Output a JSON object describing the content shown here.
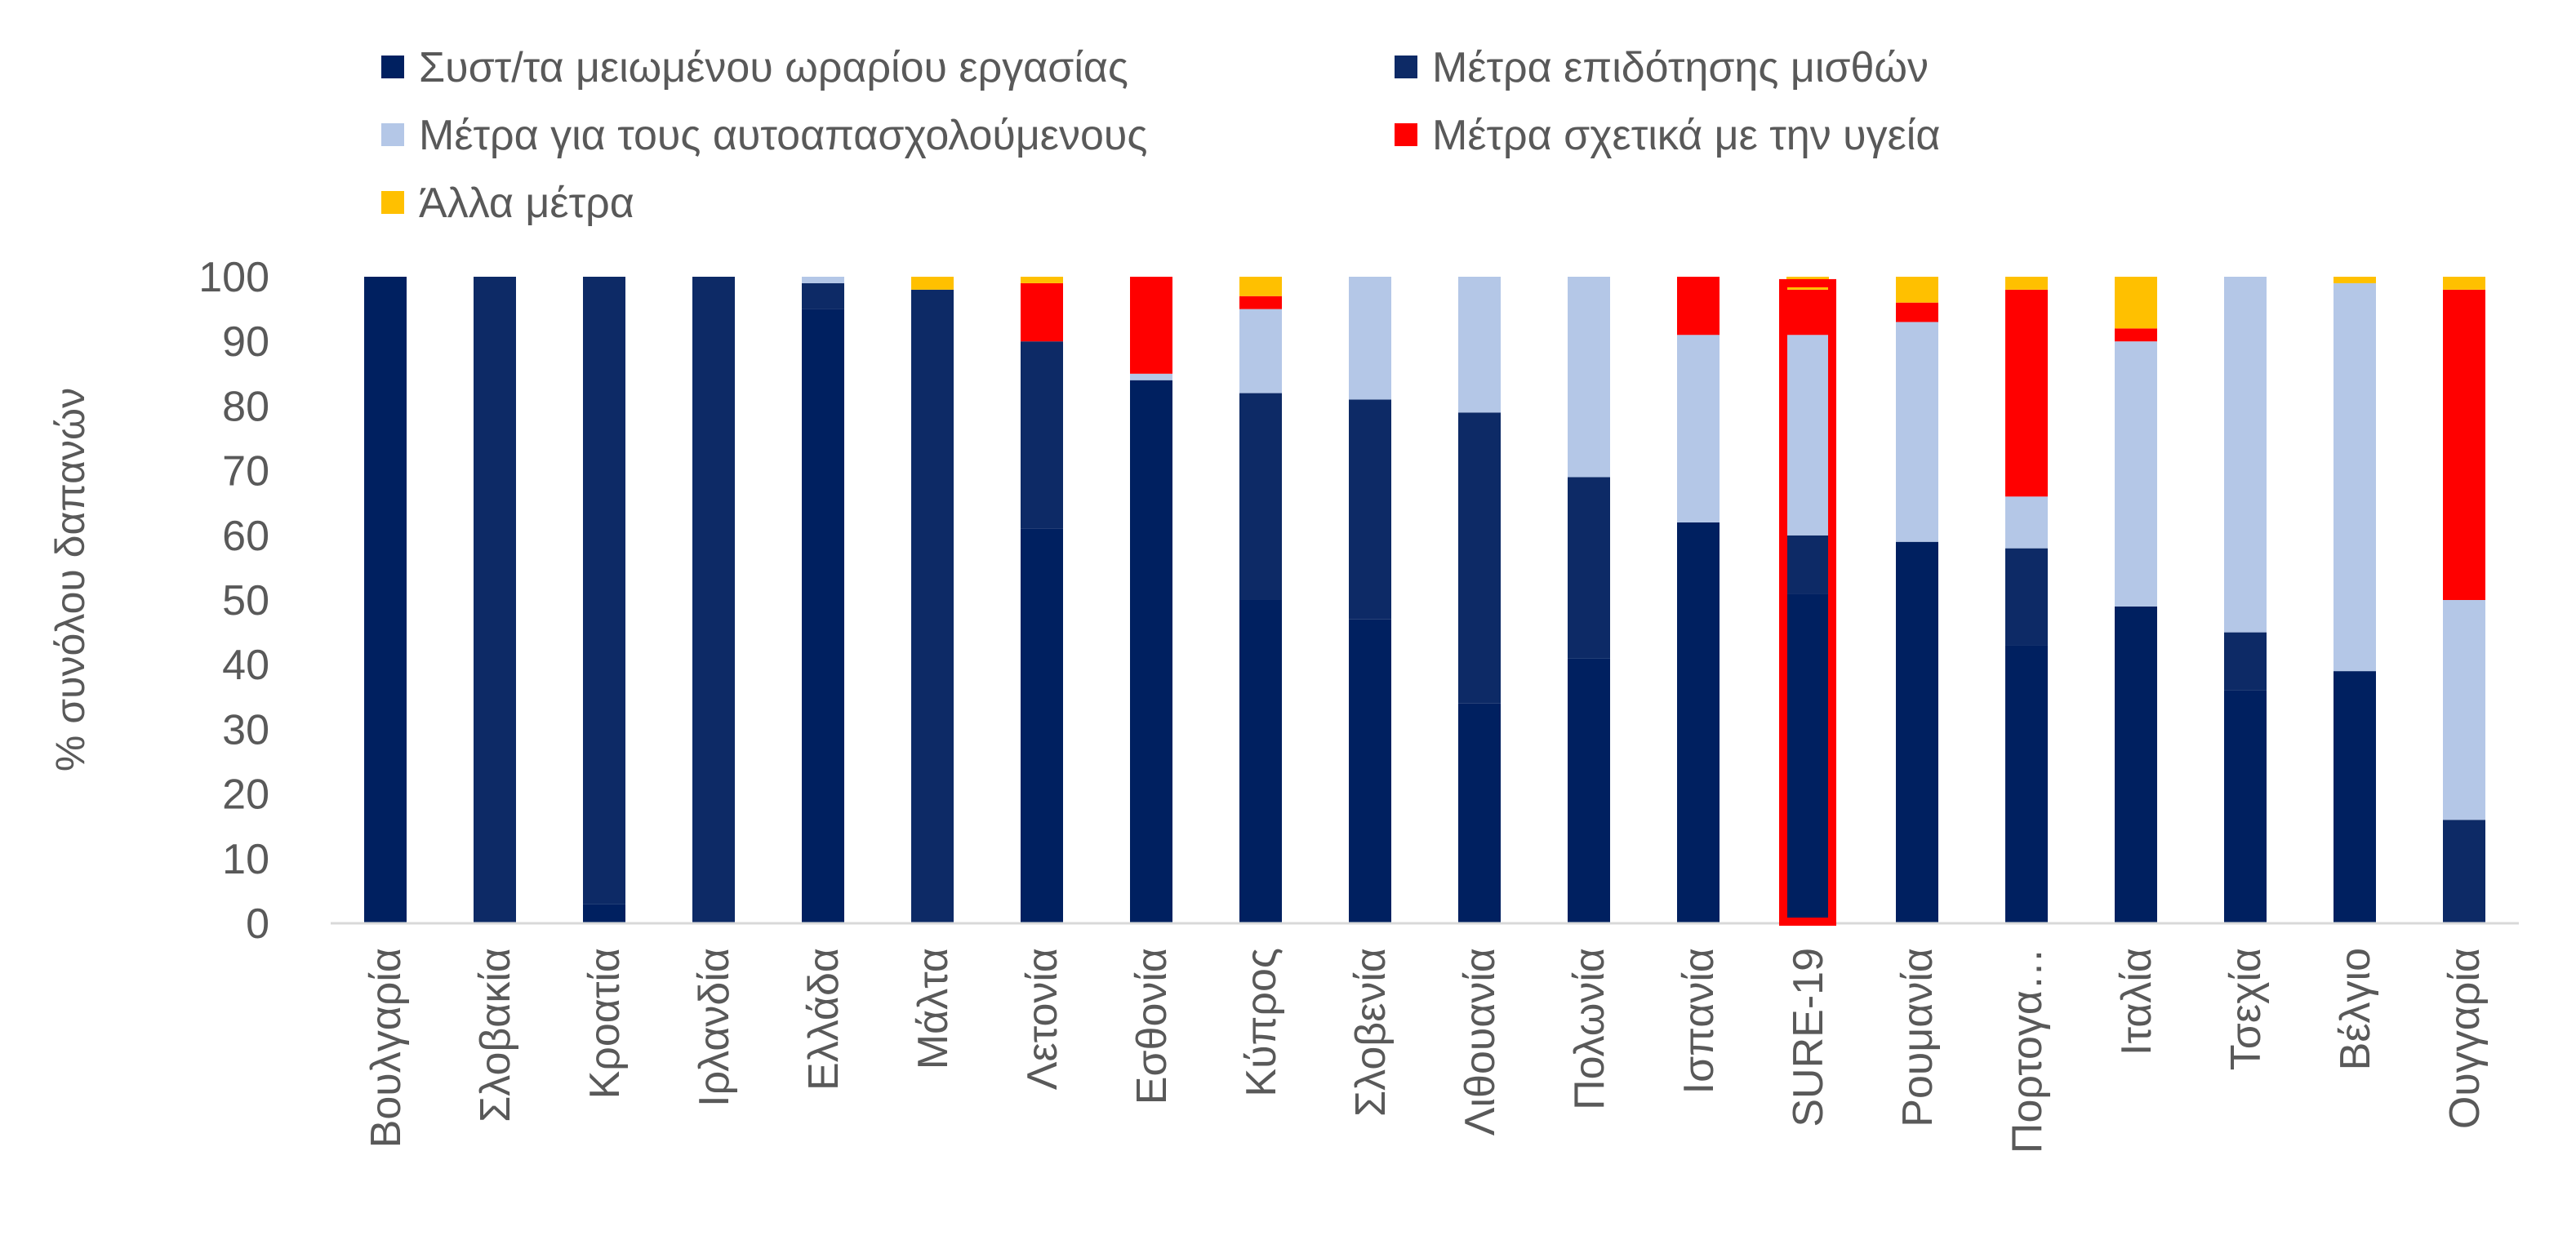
{
  "chart_data": {
    "type": "bar",
    "stacked": true,
    "title": "",
    "xlabel": "",
    "ylabel": "% συνόλου δαπανών",
    "ylim": [
      0,
      100
    ],
    "yticks": [
      0,
      10,
      20,
      30,
      40,
      50,
      60,
      70,
      80,
      90,
      100
    ],
    "grid": false,
    "legend_position": "top",
    "highlighted_category": "SURE-19",
    "categories": [
      "Βουλγαρία",
      "Σλοβακία",
      "Κροατία",
      "Ιρλανδία",
      "Ελλάδα",
      "Μάλτα",
      "Λετονία",
      "Εσθονία",
      "Κύπρος",
      "Σλοβενία",
      "Λιθουανία",
      "Πολωνία",
      "Ισπανία",
      "SURE-19",
      "Ρουμανία",
      "Πορτογα…",
      "Ιταλία",
      "Τσεχία",
      "Βέλγιο",
      "Ουγγαρία"
    ],
    "series": [
      {
        "name": "Συστ/τα μειωμένου ωραρίου εργασίας",
        "color": "#002060",
        "values": [
          100,
          0,
          3,
          0,
          95,
          0,
          61,
          84,
          50,
          47,
          34,
          41,
          62,
          51,
          59,
          43,
          49,
          36,
          39,
          0
        ]
      },
      {
        "name": "Μέτρα επιδότησης μισθών",
        "color": "#0D2A66",
        "values": [
          0,
          100,
          97,
          100,
          4,
          98,
          29,
          0,
          32,
          34,
          45,
          28,
          0,
          9,
          0,
          15,
          0,
          9,
          0,
          16
        ]
      },
      {
        "name": "Μέτρα για τους αυτοαπασχολούμενους",
        "color": "#B4C7E7",
        "values": [
          0,
          0,
          0,
          0,
          1,
          0,
          0,
          1,
          13,
          19,
          21,
          31,
          29,
          31,
          34,
          8,
          41,
          55,
          60,
          34
        ]
      },
      {
        "name": "Μέτρα σχετικά με την υγεία",
        "color": "#FF0000",
        "values": [
          0,
          0,
          0,
          0,
          0,
          0,
          9,
          15,
          2,
          0,
          0,
          0,
          9,
          7,
          3,
          32,
          2,
          0,
          0,
          48
        ]
      },
      {
        "name": "Άλλα μέτρα",
        "color": "#FFC000",
        "values": [
          0,
          0,
          0,
          0,
          0,
          2,
          1,
          0,
          3,
          0,
          0,
          0,
          0,
          2,
          4,
          2,
          8,
          0,
          1,
          2
        ]
      }
    ]
  }
}
